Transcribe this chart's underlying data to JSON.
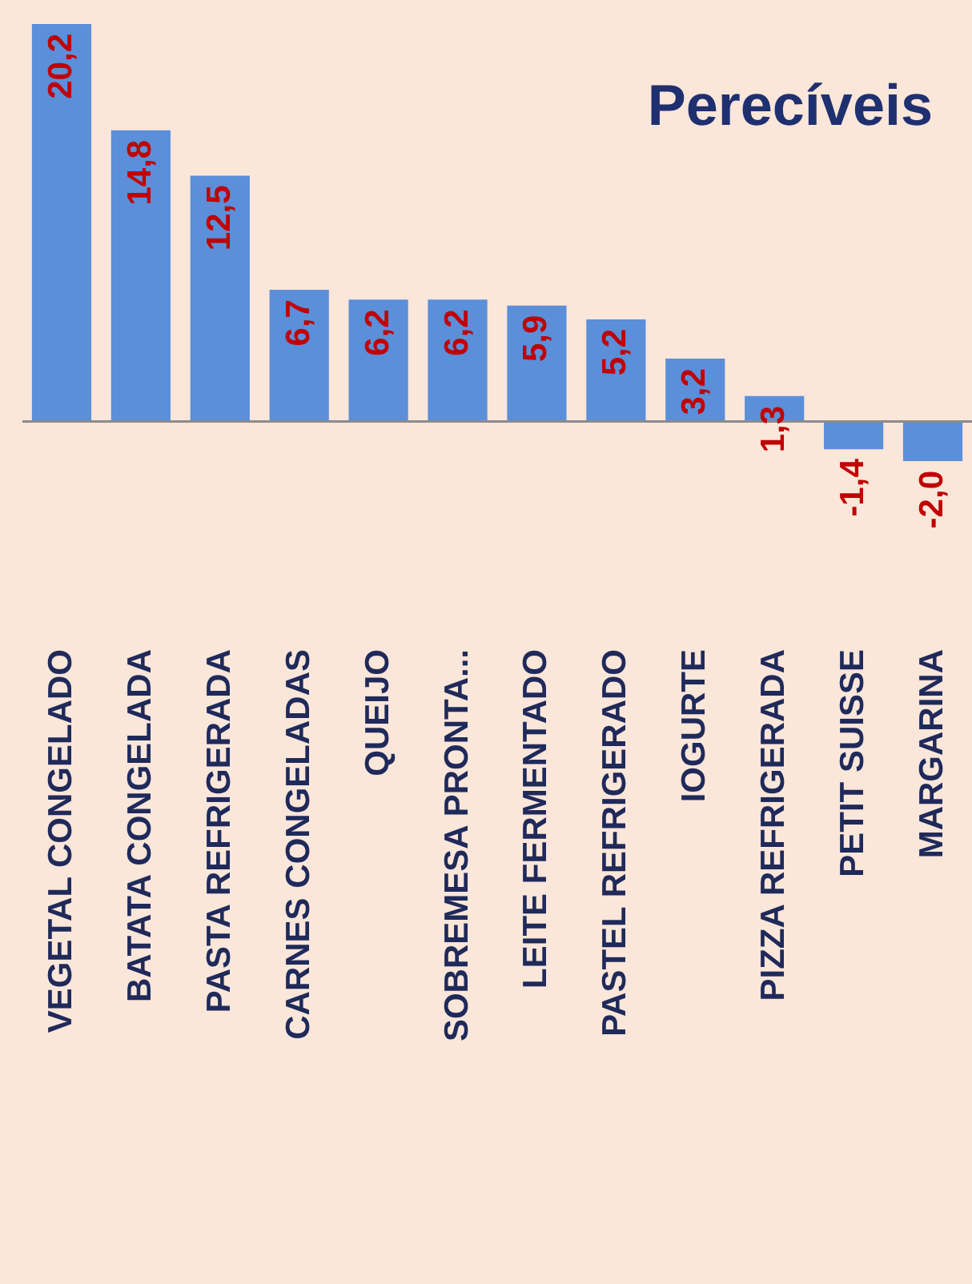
{
  "chart_data": {
    "type": "bar",
    "title": "Perecíveis",
    "categories": [
      "VEGETAL CONGELADO",
      "BATATA CONGELADA",
      "PASTA REFRIGERADA",
      "CARNES CONGELADAS",
      "QUEIJO",
      "SOBREMESA PRONTA...",
      "LEITE FERMENTADO",
      "PASTEL REFRIGERADO",
      "IOGURTE",
      "PIZZA REFRIGERADA",
      "PETIT SUISSE",
      "MARGARINA"
    ],
    "values": [
      20.2,
      14.8,
      12.5,
      6.7,
      6.2,
      6.2,
      5.9,
      5.2,
      3.2,
      1.3,
      -1.4,
      -2.0
    ],
    "value_labels": [
      "20,2",
      "14,8",
      "12,5",
      "6,7",
      "6,2",
      "6,2",
      "5,9",
      "5,2",
      "3,2",
      "1,3",
      "-1,4",
      "-2,0"
    ],
    "color": "#5b8fd9"
  }
}
